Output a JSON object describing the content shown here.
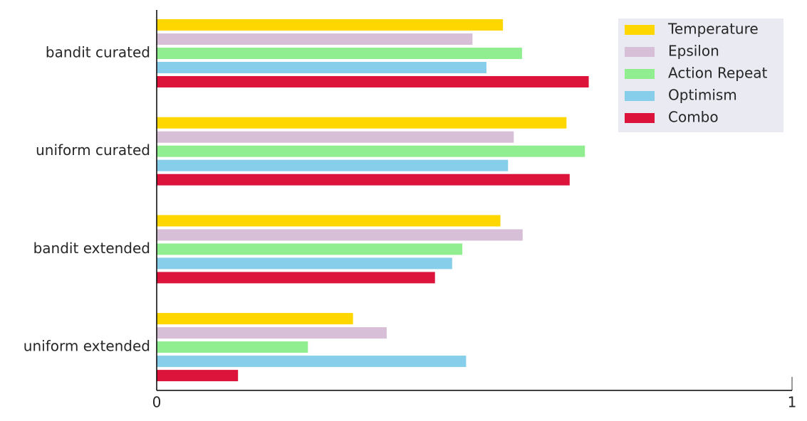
{
  "chart_data": {
    "type": "bar",
    "orientation": "horizontal",
    "categories": [
      "bandit curated",
      "uniform curated",
      "bandit extended",
      "uniform extended"
    ],
    "series": [
      {
        "name": "Temperature",
        "color": "#ffd700",
        "values": [
          0.545,
          0.645,
          0.541,
          0.309
        ]
      },
      {
        "name": "Epsilon",
        "color": "#d8bfd8",
        "values": [
          0.497,
          0.562,
          0.576,
          0.362
        ]
      },
      {
        "name": "Action Repeat",
        "color": "#90ee90",
        "values": [
          0.575,
          0.674,
          0.481,
          0.238
        ]
      },
      {
        "name": "Optimism",
        "color": "#87ceeb",
        "values": [
          0.519,
          0.553,
          0.465,
          0.487
        ]
      },
      {
        "name": "Combo",
        "color": "#dc143c",
        "values": [
          0.68,
          0.65,
          0.438,
          0.128
        ]
      }
    ],
    "xlim": [
      0,
      1
    ],
    "xticks": [
      0,
      1
    ],
    "legend": "upper right"
  }
}
